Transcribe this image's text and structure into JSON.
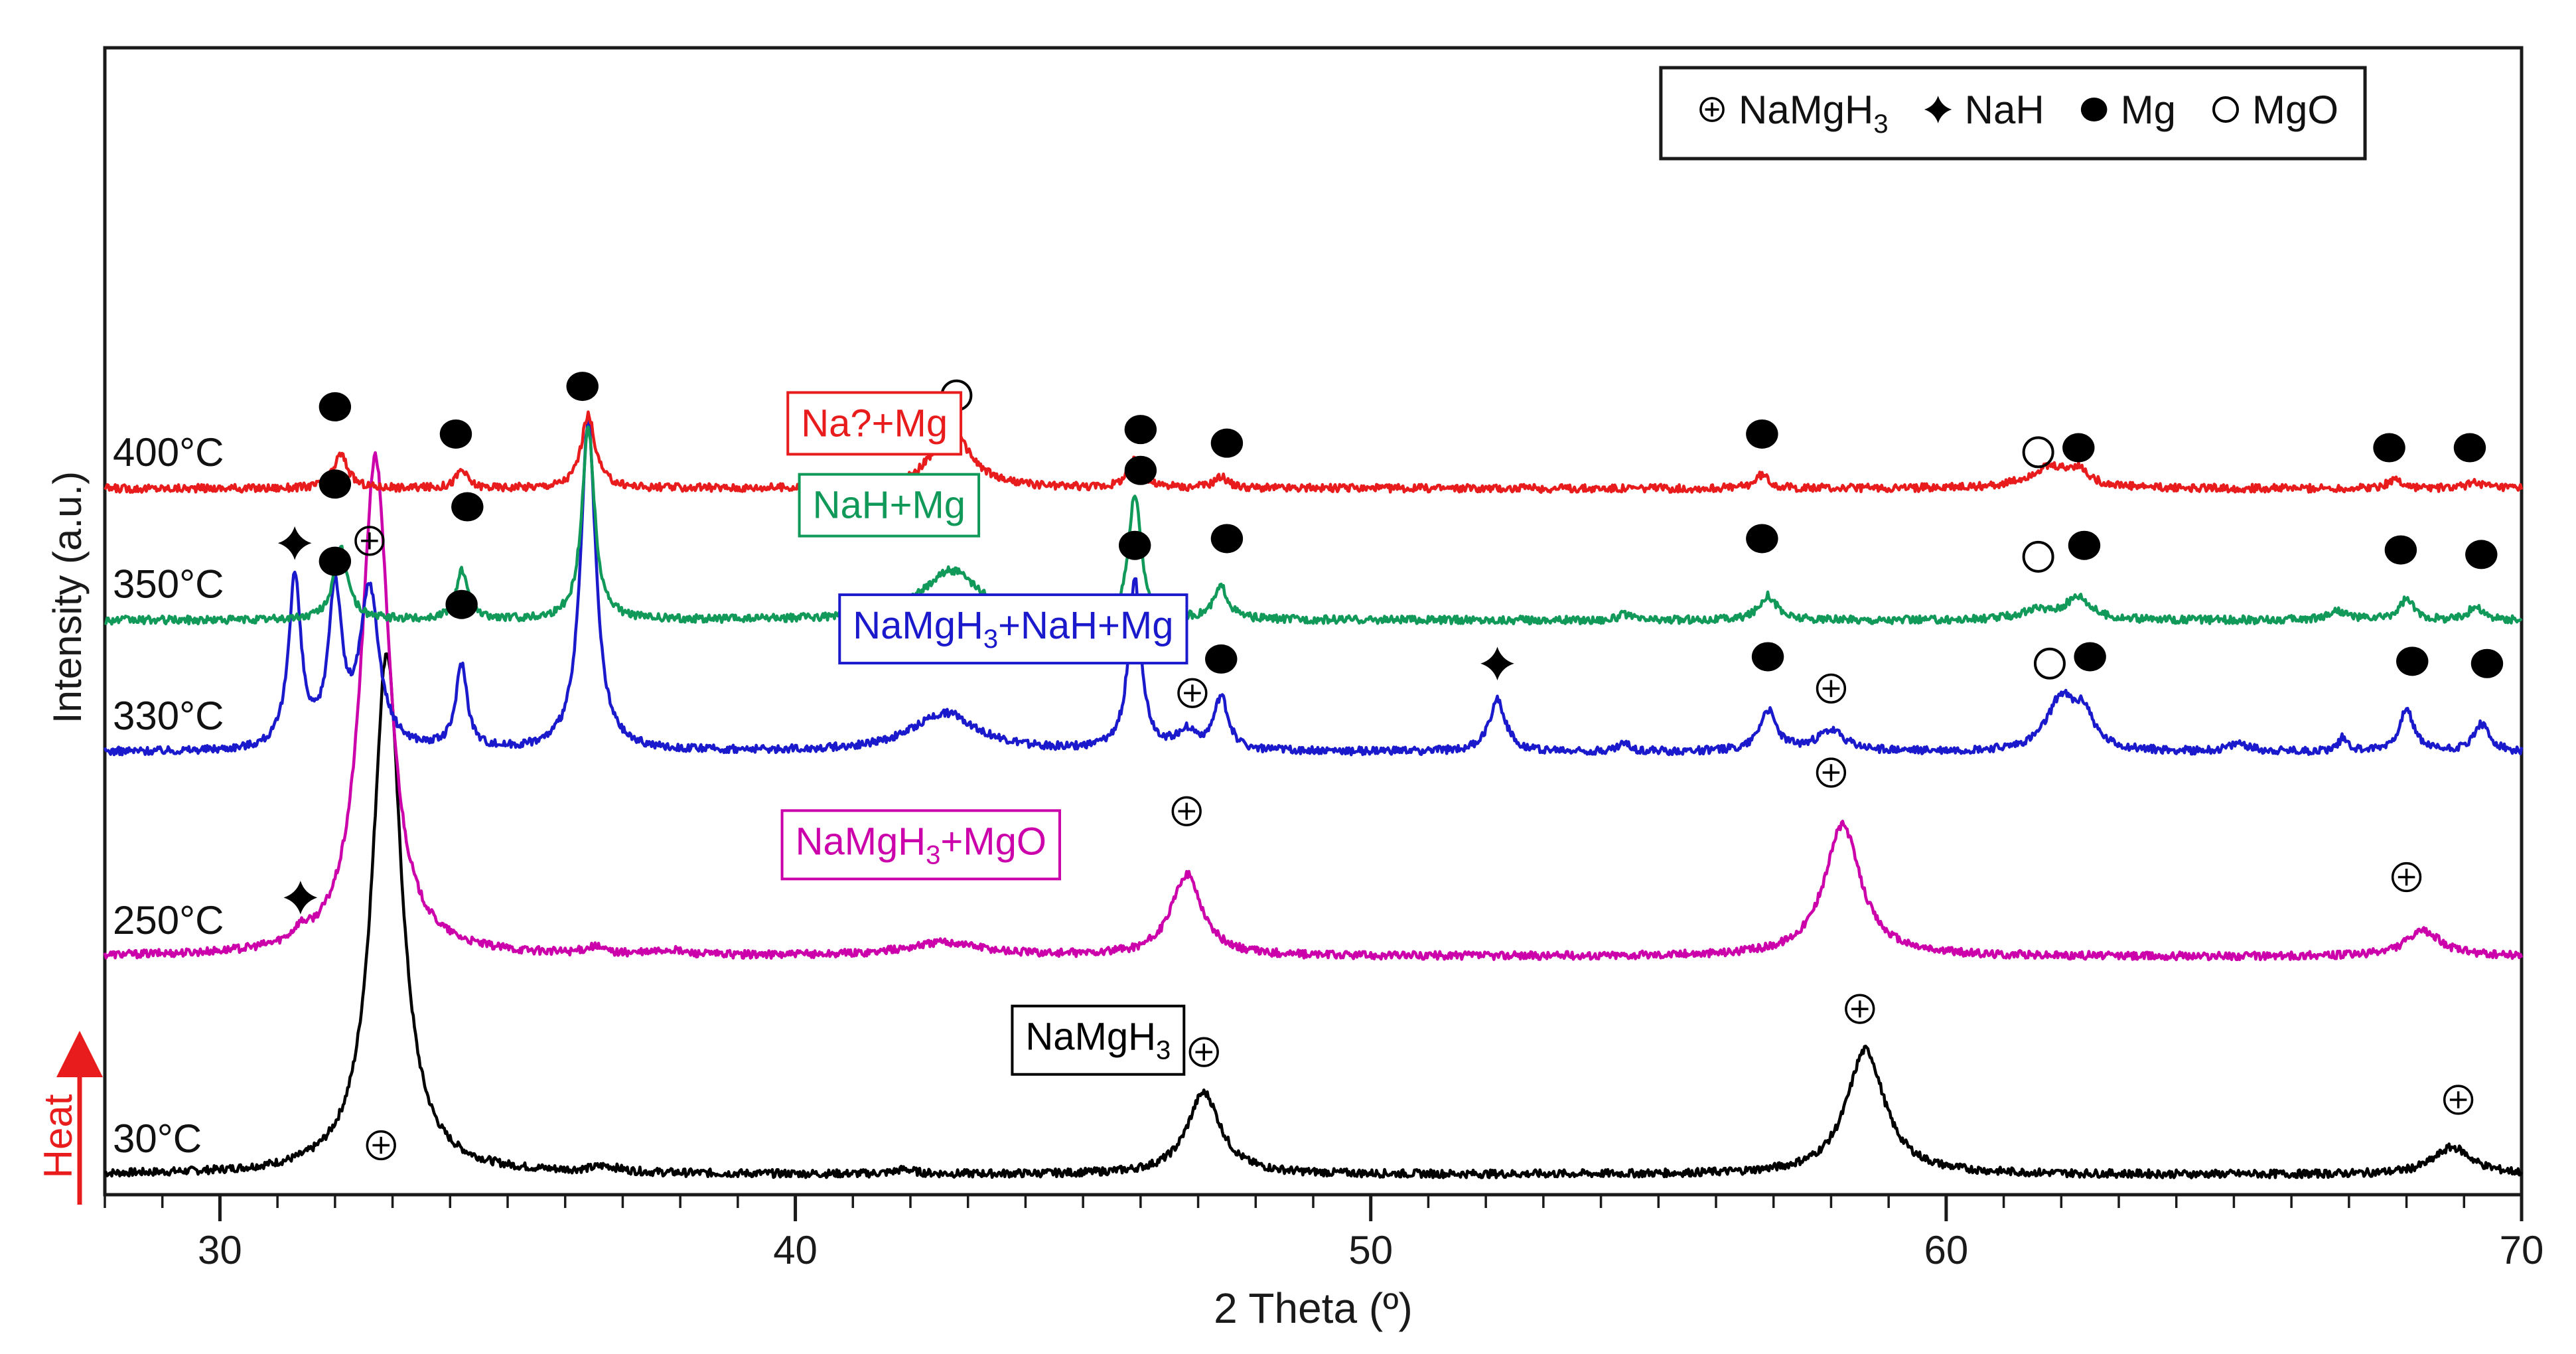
{
  "chart_data": {
    "type": "line",
    "xlabel": "2 Theta (º)",
    "ylabel": "Intensity (a.u.)",
    "xlim": [
      28,
      70
    ],
    "x_major_ticks": [
      30,
      40,
      50,
      60,
      70
    ],
    "y_axis_arrow_label": "Heat",
    "legend": {
      "position": "top-right",
      "entries": [
        {
          "marker": "circle-plus",
          "label": "NaMgH",
          "sub": "3"
        },
        {
          "marker": "star",
          "label": "NaH",
          "sub": ""
        },
        {
          "marker": "filled-circle",
          "label": "Mg",
          "sub": ""
        },
        {
          "marker": "open-circle",
          "label": "MgO",
          "sub": ""
        }
      ]
    },
    "series": [
      {
        "name": "30°C",
        "color": "#000000",
        "baseline": 0,
        "phase_label": {
          "text": "NaMgH",
          "sub": "3",
          "after": "",
          "x": 44
        },
        "label_level": 5.5,
        "peaks": [
          [
            32.9,
            23,
            0.3
          ],
          [
            47.1,
            3.6,
            0.35
          ],
          [
            58.6,
            5.5,
            0.4
          ],
          [
            68.8,
            1.2,
            0.4
          ],
          [
            36.7,
            0.25,
            0.3
          ],
          [
            41.9,
            0.2,
            0.2
          ]
        ],
        "markers": [
          [
            "circle-plus",
            32.8,
            1.3
          ],
          [
            "circle-plus",
            47.1,
            5.4
          ],
          [
            "circle-plus",
            58.5,
            7.3
          ],
          [
            "circle-plus",
            68.9,
            3.3
          ]
        ]
      },
      {
        "name": "250°C",
        "color": "#cc00aa",
        "baseline": 9.6,
        "phase_label": {
          "text": "NaMgH",
          "sub": "3",
          "after": "+MgO",
          "x": 40
        },
        "label_level": 4.5,
        "peaks": [
          [
            32.7,
            22,
            0.3
          ],
          [
            46.8,
            3.6,
            0.32
          ],
          [
            58.2,
            5.8,
            0.38
          ],
          [
            68.3,
            1.1,
            0.38
          ],
          [
            42.6,
            0.6,
            0.8
          ],
          [
            31.4,
            0.45,
            0.15
          ],
          [
            36.5,
            0.3,
            0.2
          ],
          [
            37.8,
            0.2,
            0.3
          ]
        ],
        "markers": [
          [
            "star",
            31.4,
            2.6
          ],
          [
            "circle-plus",
            46.8,
            6.4
          ],
          [
            "circle-plus",
            58.0,
            8.1
          ],
          [
            "circle-plus",
            68.0,
            3.5
          ]
        ]
      },
      {
        "name": "330°C",
        "color": "#1a1acc",
        "baseline": 18.6,
        "phase_label": {
          "text": "NaMgH",
          "sub": "3",
          "after": "+NaH+Mg",
          "x": 41
        },
        "label_level": 5.0,
        "peaks": [
          [
            31.3,
            7.5,
            0.13
          ],
          [
            32.0,
            6.8,
            0.14
          ],
          [
            32.6,
            7.0,
            0.2
          ],
          [
            34.2,
            3.7,
            0.12
          ],
          [
            36.4,
            14.5,
            0.16
          ],
          [
            42.6,
            1.7,
            0.7
          ],
          [
            45.9,
            7.5,
            0.13
          ],
          [
            46.8,
            0.8,
            0.2
          ],
          [
            47.4,
            2.3,
            0.15
          ],
          [
            52.2,
            2.3,
            0.17
          ],
          [
            54.4,
            0.35,
            0.12
          ],
          [
            56.9,
            1.8,
            0.18
          ],
          [
            58.0,
            0.9,
            0.3
          ],
          [
            62.0,
            2.3,
            0.3
          ],
          [
            62.4,
            1.4,
            0.2
          ],
          [
            65.1,
            0.35,
            0.2
          ],
          [
            66.9,
            0.6,
            0.1
          ],
          [
            68.0,
            1.8,
            0.16
          ],
          [
            69.3,
            1.2,
            0.16
          ]
        ],
        "markers": [
          [
            "star",
            31.3,
            9.2
          ],
          [
            "filled-circle",
            32.0,
            8.4
          ],
          [
            "circle-plus",
            32.6,
            9.3
          ],
          [
            "filled-circle",
            34.2,
            6.5
          ],
          [
            "filled-circle",
            45.9,
            9.1
          ],
          [
            "circle-plus",
            46.9,
            2.6
          ],
          [
            "filled-circle",
            47.4,
            4.1
          ],
          [
            "star",
            52.2,
            3.9
          ],
          [
            "filled-circle",
            56.9,
            4.2
          ],
          [
            "circle-plus",
            58.0,
            2.8
          ],
          [
            "open-circle",
            61.8,
            3.9
          ],
          [
            "filled-circle",
            62.5,
            4.2
          ],
          [
            "filled-circle",
            68.1,
            4.0
          ],
          [
            "filled-circle",
            69.4,
            3.9
          ]
        ]
      },
      {
        "name": "350°C",
        "color": "#11995a",
        "baseline": 24.4,
        "phase_label": {
          "text": "NaH+Mg",
          "sub": "",
          "after": "",
          "x": 40.3
        },
        "label_level": 4.5,
        "peaks": [
          [
            32.1,
            3.2,
            0.15
          ],
          [
            34.2,
            2.2,
            0.12
          ],
          [
            36.4,
            8.5,
            0.13
          ],
          [
            42.7,
            2.2,
            0.6
          ],
          [
            45.9,
            5.5,
            0.13
          ],
          [
            47.4,
            1.4,
            0.15
          ],
          [
            54.4,
            0.25,
            0.12
          ],
          [
            56.9,
            1.1,
            0.18
          ],
          [
            62.3,
            1.0,
            0.25
          ],
          [
            61.6,
            0.4,
            0.4
          ],
          [
            66.8,
            0.4,
            0.2
          ],
          [
            68.0,
            0.9,
            0.15
          ],
          [
            69.2,
            0.6,
            0.15
          ]
        ],
        "markers": [
          [
            "filled-circle",
            32.0,
            6.0
          ],
          [
            "filled-circle",
            34.3,
            5.0
          ],
          [
            "filled-circle",
            46.0,
            6.6
          ],
          [
            "filled-circle",
            47.5,
            3.6
          ],
          [
            "filled-circle",
            56.8,
            3.6
          ],
          [
            "open-circle",
            61.6,
            2.8
          ],
          [
            "filled-circle",
            62.4,
            3.3
          ],
          [
            "filled-circle",
            67.9,
            3.1
          ],
          [
            "filled-circle",
            69.3,
            2.9
          ]
        ]
      },
      {
        "name": "400°C",
        "color": "#e81c1c",
        "baseline": 30.2,
        "phase_label": {
          "text": "Na?+Mg",
          "sub": "",
          "after": "",
          "x": 40.1
        },
        "label_level": 2.3,
        "peaks": [
          [
            32.1,
            1.5,
            0.15
          ],
          [
            34.2,
            0.8,
            0.12
          ],
          [
            36.4,
            3.2,
            0.15
          ],
          [
            42.7,
            2.6,
            0.4
          ],
          [
            45.9,
            1.2,
            0.15
          ],
          [
            47.4,
            0.5,
            0.15
          ],
          [
            56.8,
            0.6,
            0.15
          ],
          [
            61.8,
            0.9,
            0.45
          ],
          [
            62.3,
            0.6,
            0.2
          ],
          [
            67.8,
            0.4,
            0.15
          ],
          [
            69.2,
            0.3,
            0.15
          ]
        ],
        "markers": [
          [
            "filled-circle",
            32.0,
            3.6
          ],
          [
            "filled-circle",
            34.1,
            2.4
          ],
          [
            "filled-circle",
            36.3,
            4.5
          ],
          [
            "open-circle",
            42.8,
            4.1
          ],
          [
            "filled-circle",
            46.0,
            2.6
          ],
          [
            "filled-circle",
            47.5,
            2.0
          ],
          [
            "filled-circle",
            56.8,
            2.4
          ],
          [
            "open-circle",
            61.6,
            1.6
          ],
          [
            "filled-circle",
            62.3,
            1.8
          ],
          [
            "filled-circle",
            67.7,
            1.8
          ],
          [
            "filled-circle",
            69.1,
            1.8
          ]
        ]
      }
    ]
  }
}
